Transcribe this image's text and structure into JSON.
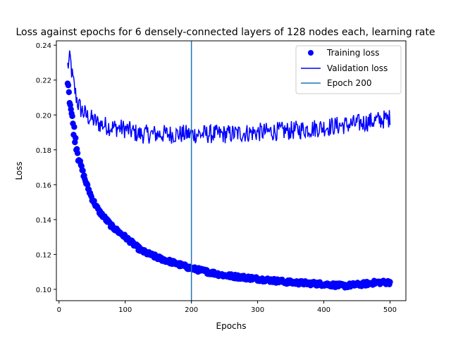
{
  "chart_data": {
    "type": "line",
    "title": "Loss against epochs for 6 densely-connected layers of 128 nodes each, learning rate",
    "xlabel": "Epochs",
    "ylabel": "Loss",
    "xlim": [
      -4,
      524
    ],
    "ylim": [
      0.0935,
      0.2425
    ],
    "xticks": [
      0,
      100,
      200,
      300,
      400,
      500
    ],
    "yticks": [
      0.1,
      0.12,
      0.14,
      0.16,
      0.18,
      0.2,
      0.22,
      0.24
    ],
    "xtick_labels": [
      "0",
      "100",
      "200",
      "300",
      "400",
      "500"
    ],
    "ytick_labels": [
      "0.10",
      "0.12",
      "0.14",
      "0.16",
      "0.18",
      "0.20",
      "0.22",
      "0.24"
    ],
    "grid": false,
    "legend_position": "top-right",
    "legend": [
      "Training loss",
      "Validation loss",
      "Epoch 200"
    ],
    "series": [
      {
        "name": "Training loss",
        "style": "markers",
        "color": "#0000ff",
        "x_start": 13,
        "x_end": 500,
        "anchors_x": [
          13,
          16,
          20,
          25,
          30,
          40,
          50,
          60,
          80,
          100,
          125,
          150,
          175,
          200,
          250,
          300,
          350,
          400,
          430,
          460,
          480,
          500
        ],
        "anchors_y": [
          0.222,
          0.21,
          0.197,
          0.186,
          0.175,
          0.162,
          0.152,
          0.145,
          0.136,
          0.13,
          0.122,
          0.118,
          0.115,
          0.112,
          0.108,
          0.106,
          0.104,
          0.103,
          0.102,
          0.103,
          0.104,
          0.104
        ]
      },
      {
        "name": "Validation loss",
        "style": "line",
        "color": "#0000ff",
        "x_start": 13,
        "x_end": 500,
        "anchors_x": [
          13,
          17,
          20,
          25,
          30,
          40,
          60,
          80,
          100,
          120,
          150,
          200,
          250,
          300,
          350,
          400,
          450,
          500
        ],
        "anchors_y": [
          0.228,
          0.232,
          0.222,
          0.212,
          0.205,
          0.2,
          0.195,
          0.193,
          0.192,
          0.189,
          0.189,
          0.189,
          0.189,
          0.19,
          0.191,
          0.193,
          0.195,
          0.198
        ]
      }
    ],
    "vline": {
      "name": "Epoch 200",
      "x": 200,
      "color": "#1f77b4"
    }
  }
}
